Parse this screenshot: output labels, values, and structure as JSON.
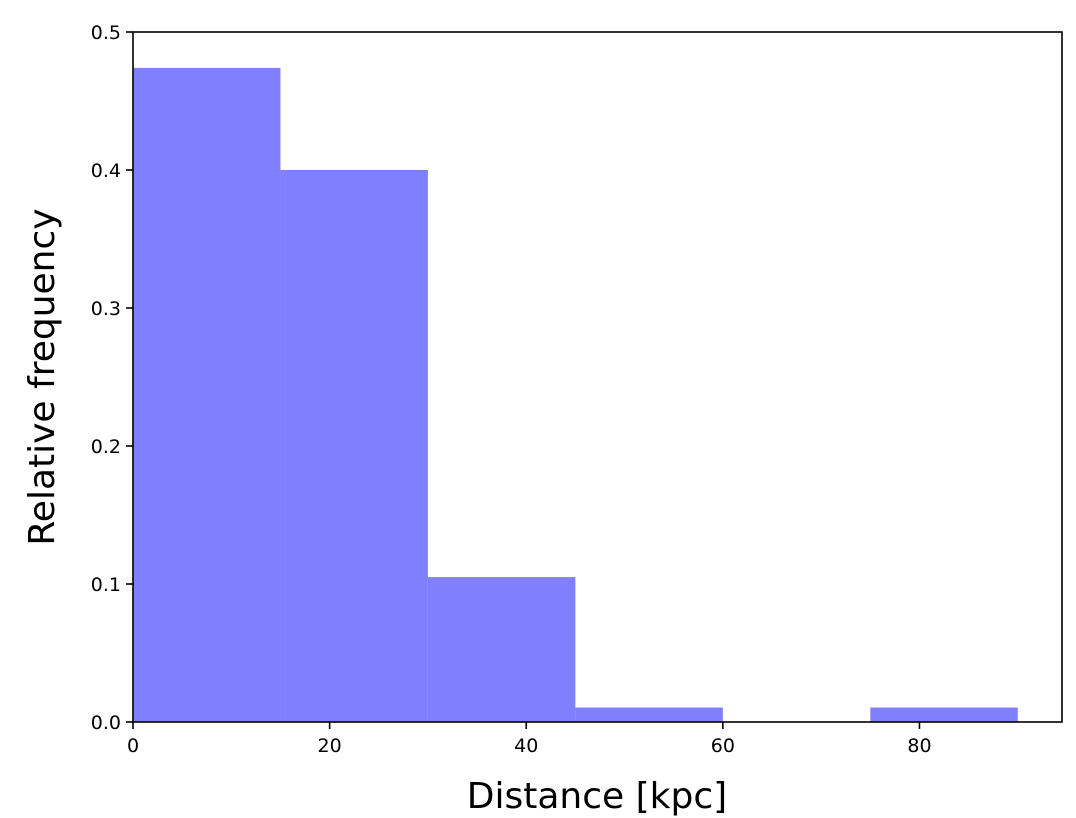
{
  "chart_data": {
    "type": "histogram",
    "xlabel": "Distance [kpc]",
    "ylabel": "Relative frequency",
    "bins": [
      0,
      15,
      30,
      45,
      60,
      75,
      90
    ],
    "values": [
      0.474,
      0.4,
      0.105,
      0.0105,
      0,
      0.0105
    ],
    "color": "#8080ff",
    "xlim": [
      0,
      94.5
    ],
    "ylim": [
      0,
      0.5
    ],
    "xticks": [
      0,
      20,
      40,
      60,
      80
    ],
    "yticks": [
      {
        "value": 0,
        "label": "0.0"
      },
      0.1,
      0.2,
      0.3,
      0.4,
      0.5
    ]
  }
}
